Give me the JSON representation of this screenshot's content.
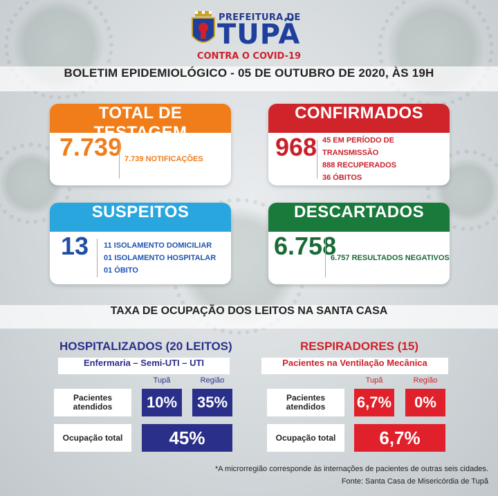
{
  "header": {
    "prefeitura": "PREFEITURA DE",
    "city": "TUPÃ",
    "campaign": "CONTRA O COVID-19"
  },
  "bulletin": "BOLETIM EPIDEMIOLÓGICO - 05 DE OUTUBRO DE 2020, ÀS 19H",
  "cards": {
    "testagem": {
      "title": "TOTAL DE TESTAGEM",
      "value": "7.739",
      "lines": [
        "7.739 NOTIFICAÇÕES"
      ]
    },
    "confirmados": {
      "title": "CONFIRMADOS",
      "value": "968",
      "lines": [
        "45 EM PERÍODO DE TRANSMISSÃO",
        "888 RECUPERADOS",
        "36 ÓBITOS"
      ]
    },
    "suspeitos": {
      "title": "SUSPEITOS",
      "value": "13",
      "lines": [
        "11 ISOLAMENTO DOMICILIAR",
        "01 ISOLAMENTO HOSPITALAR",
        "01 ÓBITO"
      ]
    },
    "descartados": {
      "title": "DESCARTADOS",
      "value": "6.758",
      "lines": [
        "6.757 RESULTADOS NEGATIVOS"
      ]
    }
  },
  "occupancy": {
    "title": "TAXA DE OCUPAÇÃO DOS LEITOS NA SANTA CASA",
    "hospitalizados": {
      "title": "HOSPITALIZADOS (20 LEITOS)",
      "subtitle": "Enfermaria – Semi-UTI – UTI",
      "col_tupa": "Tupã",
      "col_regiao": "Região",
      "row_pacientes": "Pacientes atendidos",
      "row_ocupacao": "Ocupação total",
      "pacientes_tupa": "10%",
      "pacientes_regiao": "35%",
      "ocupacao_total": "45%"
    },
    "respiradores": {
      "title": "RESPIRADORES (15)",
      "subtitle": "Pacientes na Ventilação Mecânica",
      "col_tupa": "Tupã",
      "col_regiao": "Região",
      "row_pacientes": "Pacientes atendidos",
      "row_ocupacao": "Ocupação total",
      "pacientes_tupa": "6,7%",
      "pacientes_regiao": "0%",
      "ocupacao_total": "6,7%"
    }
  },
  "footnote": "*A microrregião corresponde às internações de pacientes de outras seis cidades.",
  "source": "Fonte: Santa Casa de Misericórdia de Tupã",
  "colors": {
    "orange": "#f07d1a",
    "red": "#d0242b",
    "blue": "#2aa6df",
    "green": "#1a7a3c",
    "navy": "#2a2f8a"
  }
}
